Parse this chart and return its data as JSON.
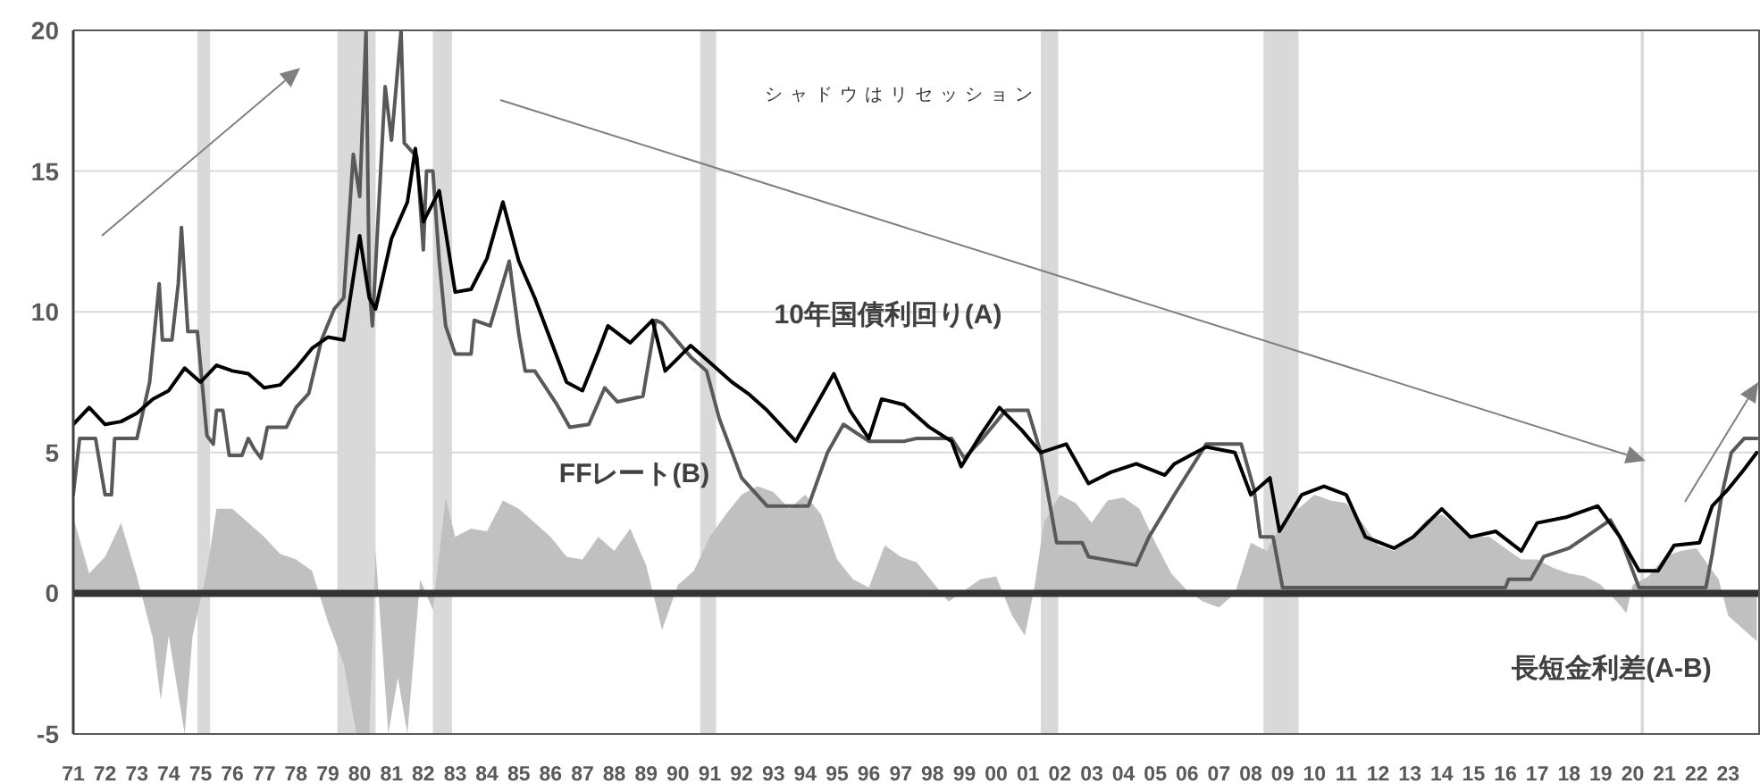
{
  "chart_data": {
    "type": "line",
    "annotations": [
      "シャドウはリセッション"
    ],
    "xlim": [
      1971,
      2024
    ],
    "xticks": [
      {
        "value": 1971,
        "label": "71"
      },
      {
        "value": 1972,
        "label": "72"
      },
      {
        "value": 1973,
        "label": "73"
      },
      {
        "value": 1974,
        "label": "74"
      },
      {
        "value": 1975,
        "label": "75"
      },
      {
        "value": 1976,
        "label": "76"
      },
      {
        "value": 1977,
        "label": "77"
      },
      {
        "value": 1978,
        "label": "78"
      },
      {
        "value": 1979,
        "label": "79"
      },
      {
        "value": 1980,
        "label": "80"
      },
      {
        "value": 1981,
        "label": "81"
      },
      {
        "value": 1982,
        "label": "82"
      },
      {
        "value": 1983,
        "label": "83"
      },
      {
        "value": 1984,
        "label": "84"
      },
      {
        "value": 1985,
        "label": "85"
      },
      {
        "value": 1986,
        "label": "86"
      },
      {
        "value": 1987,
        "label": "87"
      },
      {
        "value": 1988,
        "label": "88"
      },
      {
        "value": 1989,
        "label": "89"
      },
      {
        "value": 1990,
        "label": "90"
      },
      {
        "value": 1991,
        "label": "91"
      },
      {
        "value": 1992,
        "label": "92"
      },
      {
        "value": 1993,
        "label": "93"
      },
      {
        "value": 1994,
        "label": "94"
      },
      {
        "value": 1995,
        "label": "95"
      },
      {
        "value": 1996,
        "label": "96"
      },
      {
        "value": 1997,
        "label": "97"
      },
      {
        "value": 1998,
        "label": "98"
      },
      {
        "value": 1999,
        "label": "99"
      },
      {
        "value": 2000,
        "label": "00"
      },
      {
        "value": 2001,
        "label": "01"
      },
      {
        "value": 2002,
        "label": "02"
      },
      {
        "value": 2003,
        "label": "03"
      },
      {
        "value": 2004,
        "label": "04"
      },
      {
        "value": 2005,
        "label": "05"
      },
      {
        "value": 2006,
        "label": "06"
      },
      {
        "value": 2007,
        "label": "07"
      },
      {
        "value": 2008,
        "label": "08"
      },
      {
        "value": 2009,
        "label": "09"
      },
      {
        "value": 2010,
        "label": "10"
      },
      {
        "value": 2011,
        "label": "11"
      },
      {
        "value": 2012,
        "label": "12"
      },
      {
        "value": 2013,
        "label": "13"
      },
      {
        "value": 2014,
        "label": "14"
      },
      {
        "value": 2015,
        "label": "15"
      },
      {
        "value": 2016,
        "label": "16"
      },
      {
        "value": 2017,
        "label": "17"
      },
      {
        "value": 2018,
        "label": "18"
      },
      {
        "value": 2019,
        "label": "19"
      },
      {
        "value": 2020,
        "label": "20"
      },
      {
        "value": 2021,
        "label": "21"
      },
      {
        "value": 2022,
        "label": "22"
      },
      {
        "value": 2023,
        "label": "23"
      }
    ],
    "ylim": [
      -5,
      20
    ],
    "yticks": [
      -5,
      0,
      5,
      10,
      15,
      20
    ],
    "grid": "y",
    "legend": false,
    "bands": [
      {
        "axis": "x",
        "from": 1974.9,
        "to": 1975.3,
        "color": "#d9d9d9"
      },
      {
        "axis": "x",
        "from": 1979.3,
        "to": 1980.5,
        "color": "#d9d9d9"
      },
      {
        "axis": "x",
        "from": 1982.3,
        "to": 1982.9,
        "color": "#d9d9d9"
      },
      {
        "axis": "x",
        "from": 1990.7,
        "to": 1991.2,
        "color": "#d9d9d9"
      },
      {
        "axis": "x",
        "from": 2001.4,
        "to": 2001.95,
        "color": "#d9d9d9"
      },
      {
        "axis": "x",
        "from": 2008.4,
        "to": 2009.5,
        "color": "#d9d9d9"
      },
      {
        "axis": "x",
        "from": 2020.25,
        "to": 2020.35,
        "color": "#d9d9d9"
      }
    ],
    "ref_lines": [
      {
        "axis": "y",
        "value": 0,
        "color": "#333333"
      }
    ],
    "series": [
      {
        "name": "長短金利差(A-B)",
        "type": "area",
        "color": "#c0c0c0",
        "x": [
          1971.0,
          1971.5,
          1972.0,
          1972.5,
          1973.0,
          1973.5,
          1973.75,
          1974.0,
          1974.5,
          1974.75,
          1975.2,
          1975.5,
          1976.0,
          1976.5,
          1977.0,
          1977.5,
          1978.0,
          1978.5,
          1979.0,
          1979.5,
          1979.9,
          1980.3,
          1980.5,
          1980.9,
          1981.2,
          1981.5,
          1981.9,
          1982.3,
          1982.7,
          1983.0,
          1983.5,
          1984.0,
          1984.5,
          1985.0,
          1985.5,
          1986.0,
          1986.5,
          1987.0,
          1987.5,
          1988.0,
          1988.5,
          1989.0,
          1989.5,
          1990.0,
          1990.5,
          1991.0,
          1991.5,
          1992.0,
          1992.5,
          1993.0,
          1993.5,
          1994.0,
          1994.5,
          1995.0,
          1995.5,
          1996.0,
          1996.5,
          1997.0,
          1997.5,
          1998.0,
          1998.5,
          1999.0,
          1999.5,
          2000.0,
          2000.5,
          2000.9,
          2001.2,
          2001.5,
          2002.0,
          2002.5,
          2003.0,
          2003.5,
          2004.0,
          2004.5,
          2005.0,
          2005.5,
          2006.0,
          2006.5,
          2007.0,
          2007.5,
          2008.0,
          2008.5,
          2009.0,
          2009.5,
          2010.0,
          2010.5,
          2011.0,
          2011.5,
          2012.0,
          2012.5,
          2013.0,
          2013.5,
          2014.0,
          2014.5,
          2015.0,
          2015.5,
          2016.0,
          2016.5,
          2017.0,
          2017.5,
          2018.0,
          2018.5,
          2019.0,
          2019.5,
          2019.8,
          2020.0,
          2020.5,
          2021.0,
          2021.5,
          2022.0,
          2022.5,
          2022.7,
          2023.0,
          2023.5,
          2023.9
        ],
        "values": [
          2.7,
          0.7,
          1.3,
          2.5,
          0.6,
          -1.6,
          -3.8,
          -1.5,
          -5,
          -1.5,
          0.8,
          3.0,
          3.0,
          2.5,
          2.0,
          1.4,
          1.2,
          0.8,
          -1.0,
          -2.5,
          -5,
          -5,
          1.5,
          -5,
          -3.0,
          -5,
          0.5,
          -0.6,
          3.4,
          2.0,
          2.3,
          2.2,
          3.3,
          3.0,
          2.5,
          2.0,
          1.3,
          1.2,
          2.0,
          1.5,
          2.3,
          1.0,
          -1.3,
          0.3,
          0.8,
          2.0,
          2.8,
          3.5,
          3.8,
          3.6,
          3.0,
          3.5,
          2.8,
          1.2,
          0.5,
          0.2,
          1.7,
          1.3,
          1.1,
          0.4,
          -0.3,
          0.1,
          0.5,
          0.6,
          -0.8,
          -1.5,
          0.2,
          2.5,
          3.5,
          3.2,
          2.5,
          3.3,
          3.4,
          3.0,
          1.8,
          0.7,
          0.1,
          -0.3,
          -0.5,
          0.0,
          1.8,
          1.5,
          2.5,
          3.0,
          3.5,
          3.3,
          3.2,
          2.5,
          1.7,
          1.5,
          1.9,
          2.6,
          2.8,
          2.4,
          2.0,
          2.0,
          1.6,
          1.2,
          1.2,
          0.9,
          0.7,
          0.6,
          0.3,
          -0.3,
          -0.7,
          0.3,
          0.6,
          1.3,
          1.5,
          1.6,
          0.8,
          0.5,
          -0.8,
          -1.3,
          -1.7
        ]
      },
      {
        "name": "FFレート(B)",
        "type": "line",
        "color": "#595959",
        "x": [
          1971.0,
          1971.2,
          1971.7,
          1972.0,
          1972.2,
          1972.3,
          1973.0,
          1973.4,
          1973.7,
          1973.8,
          1974.1,
          1974.3,
          1974.4,
          1974.6,
          1974.9,
          1975.2,
          1975.4,
          1975.5,
          1975.7,
          1975.9,
          1976.3,
          1976.5,
          1976.7,
          1976.9,
          1977.1,
          1977.7,
          1978.0,
          1978.4,
          1978.8,
          1979.2,
          1979.5,
          1979.8,
          1980.0,
          1980.2,
          1980.3,
          1980.4,
          1980.8,
          1981.0,
          1981.3,
          1981.4,
          1981.8,
          1982.0,
          1982.1,
          1982.3,
          1982.5,
          1982.7,
          1983.0,
          1983.5,
          1983.6,
          1984.1,
          1984.7,
          1985.0,
          1985.2,
          1985.5,
          1986.2,
          1986.6,
          1987.2,
          1987.7,
          1988.1,
          1988.9,
          1989.3,
          1989.5,
          1990.4,
          1990.9,
          1991.3,
          1992.0,
          1992.8,
          1994.1,
          1994.7,
          1995.2,
          1996.0,
          1997.1,
          1997.5,
          1998.6,
          1999.0,
          1999.5,
          2000.3,
          2001.0,
          2001.4,
          2001.9,
          2002.7,
          2002.9,
          2004.4,
          2004.8,
          2005.6,
          2006.6,
          2007.7,
          2008.1,
          2008.3,
          2008.7,
          2009.0,
          2016.0,
          2016.1,
          2016.8,
          2017.2,
          2018.0,
          2019.3,
          2019.6,
          2020.2,
          2022.3,
          2022.5,
          2022.8,
          2023.1,
          2023.5,
          2023.9
        ],
        "values": [
          3.5,
          5.5,
          5.5,
          3.5,
          3.5,
          5.5,
          5.5,
          7.5,
          11.0,
          9.0,
          9.0,
          11.0,
          13.0,
          9.3,
          9.3,
          5.6,
          5.3,
          6.5,
          6.5,
          4.9,
          4.9,
          5.5,
          5.1,
          4.8,
          5.9,
          5.9,
          6.6,
          7.1,
          9.0,
          10.1,
          10.5,
          15.6,
          14.1,
          20,
          10.9,
          9.5,
          18.0,
          16.1,
          20,
          16.0,
          15.5,
          12.2,
          15.0,
          15.0,
          11.8,
          9.5,
          8.5,
          8.5,
          9.7,
          9.5,
          11.8,
          9.2,
          7.9,
          7.9,
          6.7,
          5.9,
          6.0,
          7.3,
          6.8,
          7.0,
          9.7,
          9.6,
          8.4,
          7.9,
          6.2,
          4.1,
          3.1,
          3.1,
          5.0,
          6.0,
          5.4,
          5.4,
          5.5,
          5.5,
          4.8,
          5.4,
          6.5,
          6.5,
          5.0,
          1.8,
          1.8,
          1.3,
          1.0,
          2.0,
          3.5,
          5.3,
          5.3,
          3.7,
          2.0,
          2.0,
          0.2,
          0.2,
          0.5,
          0.5,
          1.3,
          1.6,
          2.6,
          2.0,
          0.2,
          0.2,
          1.4,
          3.5,
          5.0,
          5.5,
          5.5
        ]
      },
      {
        "name": "10年国債利回り(A)",
        "type": "line",
        "color": "#000000",
        "x": [
          1971.0,
          1971.5,
          1972.0,
          1972.5,
          1973.0,
          1973.5,
          1974.0,
          1974.5,
          1975.0,
          1975.5,
          1976.0,
          1976.5,
          1977.0,
          1977.5,
          1978.0,
          1978.5,
          1979.0,
          1979.5,
          1980.0,
          1980.3,
          1980.5,
          1981.0,
          1981.5,
          1981.75,
          1982.0,
          1982.5,
          1983.0,
          1983.5,
          1984.0,
          1984.5,
          1985.0,
          1985.5,
          1986.0,
          1986.5,
          1987.0,
          1987.5,
          1987.8,
          1988.5,
          1989.2,
          1989.6,
          1990.4,
          1991.1,
          1991.7,
          1992.2,
          1992.8,
          1993.7,
          1994.9,
          1995.4,
          1996.0,
          1996.4,
          1997.1,
          1997.9,
          1998.6,
          1998.9,
          1999.5,
          2000.1,
          2000.8,
          2001.4,
          2002.2,
          2002.9,
          2003.6,
          2004.4,
          2005.3,
          2005.6,
          2006.6,
          2007.5,
          2008.0,
          2008.6,
          2008.9,
          2009.6,
          2010.3,
          2011.0,
          2011.6,
          2012.5,
          2013.1,
          2014.0,
          2014.9,
          2015.7,
          2016.5,
          2017.0,
          2017.9,
          2018.9,
          2019.6,
          2020.2,
          2020.8,
          2021.3,
          2022.1,
          2022.5,
          2023.0,
          2023.5,
          2023.9
        ],
        "values": [
          6.0,
          6.6,
          6.0,
          6.1,
          6.4,
          6.9,
          7.2,
          8.0,
          7.5,
          8.1,
          7.9,
          7.8,
          7.3,
          7.4,
          8.0,
          8.7,
          9.1,
          9.0,
          12.7,
          10.5,
          10.1,
          12.6,
          13.9,
          15.8,
          13.2,
          14.3,
          10.7,
          10.8,
          11.9,
          13.9,
          11.8,
          10.5,
          9.0,
          7.5,
          7.2,
          8.6,
          9.5,
          8.9,
          9.7,
          7.9,
          8.8,
          8.1,
          7.5,
          7.1,
          6.5,
          5.4,
          7.8,
          6.5,
          5.5,
          6.9,
          6.7,
          5.9,
          5.4,
          4.5,
          5.6,
          6.6,
          5.8,
          5.0,
          5.3,
          3.9,
          4.3,
          4.6,
          4.2,
          4.6,
          5.2,
          5.0,
          3.5,
          4.1,
          2.2,
          3.5,
          3.8,
          3.5,
          2.0,
          1.6,
          2.0,
          3.0,
          2.0,
          2.2,
          1.5,
          2.5,
          2.7,
          3.1,
          2.0,
          0.8,
          0.8,
          1.7,
          1.8,
          3.1,
          3.7,
          4.4,
          5.0
        ]
      }
    ]
  }
}
